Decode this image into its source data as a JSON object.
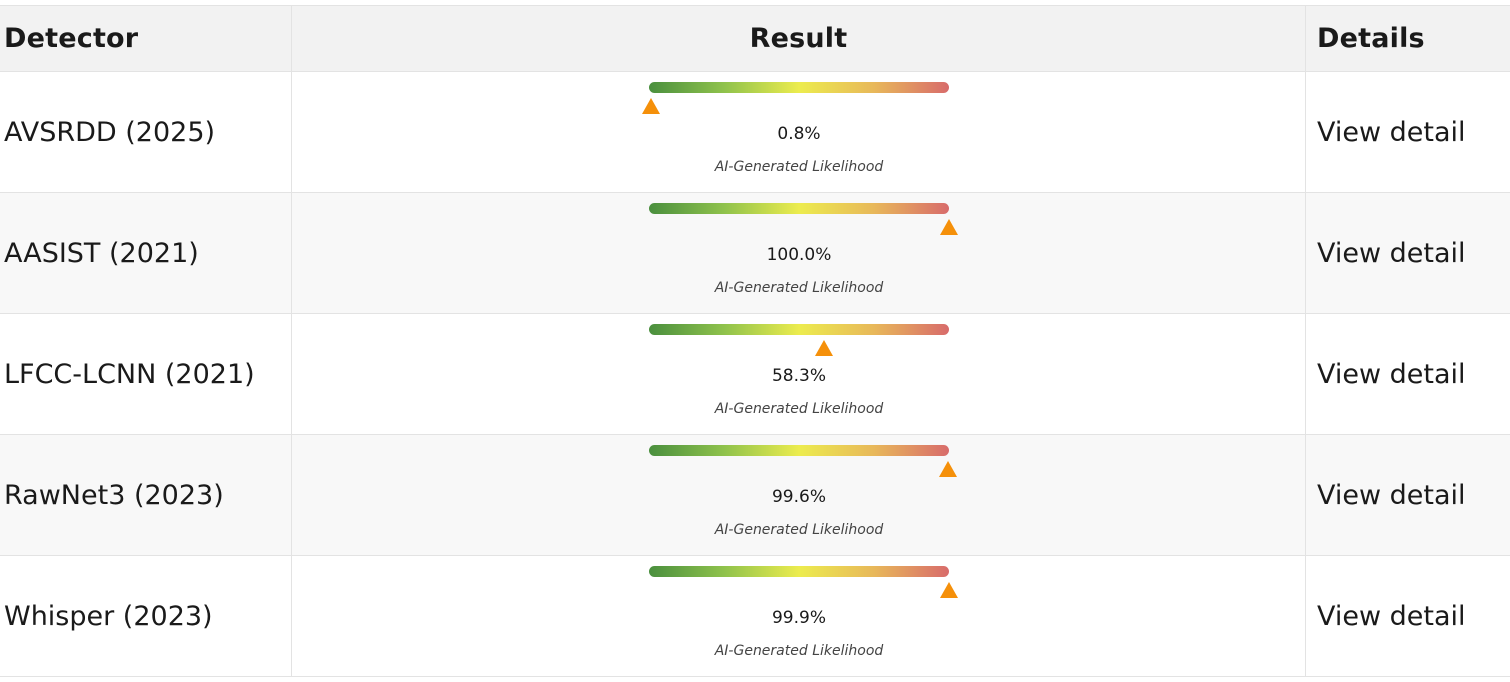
{
  "table": {
    "headers": {
      "detector": "Detector",
      "result": "Result",
      "details": "Details"
    },
    "rows": [
      {
        "detector": "AVSRDD (2025)",
        "likelihood": 0.008,
        "percent": "0.8%",
        "caption": "AI-Generated Likelihood",
        "details": "View detail"
      },
      {
        "detector": "AASIST (2021)",
        "likelihood": 1.0,
        "percent": "100.0%",
        "caption": "AI-Generated Likelihood",
        "details": "View detail"
      },
      {
        "detector": "LFCC-LCNN (2021)",
        "likelihood": 0.583,
        "percent": "58.3%",
        "caption": "AI-Generated Likelihood",
        "details": "View detail"
      },
      {
        "detector": "RawNet3 (2023)",
        "likelihood": 0.996,
        "percent": "99.6%",
        "caption": "AI-Generated Likelihood",
        "details": "View detail"
      },
      {
        "detector": "Whisper (2023)",
        "likelihood": 0.999,
        "percent": "99.9%",
        "caption": "AI-Generated Likelihood",
        "details": "View detail"
      }
    ]
  },
  "colors": {
    "marker": "#f5900a",
    "gradient_start": "#4a8f3e",
    "gradient_mid": "#ecec4e",
    "gradient_end": "#d86b6b"
  },
  "icons": {
    "marker": "triangle-up-icon"
  }
}
